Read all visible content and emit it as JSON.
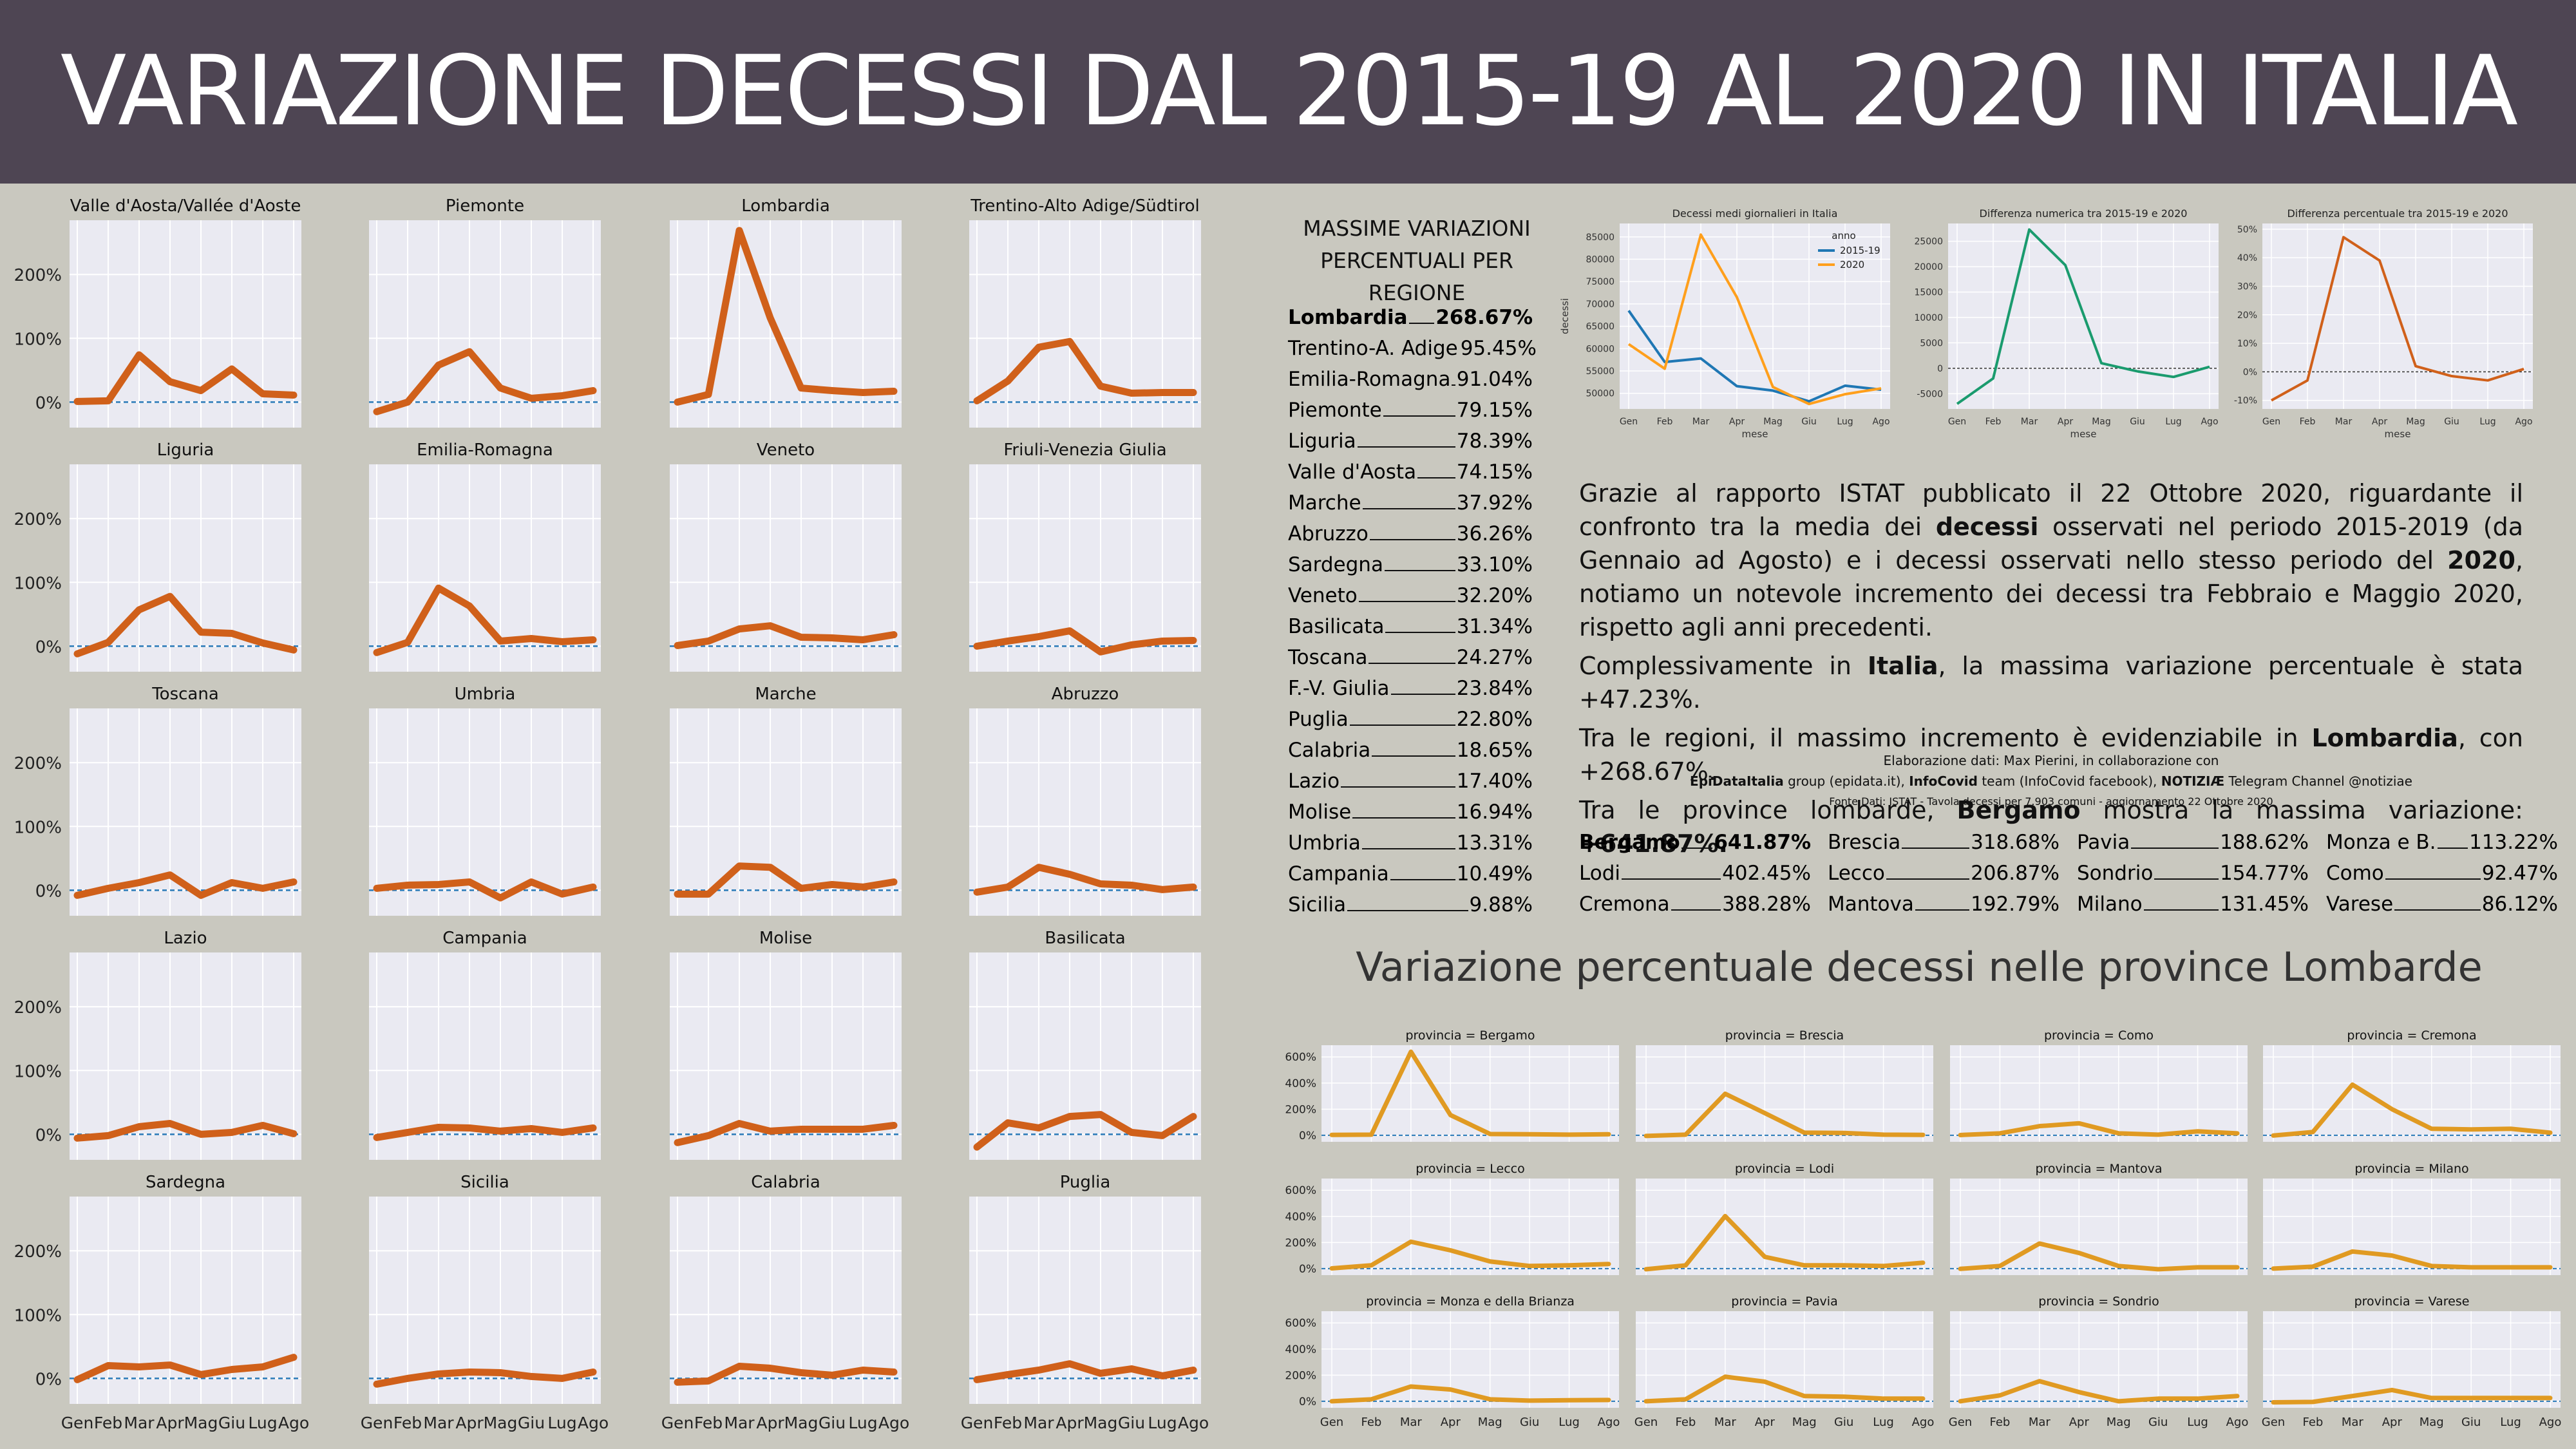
{
  "header": {
    "title": "VARIAZIONE DECESSI DAL 2015-19 AL 2020 IN ITALIA",
    "bg": "#4e4553"
  },
  "colors": {
    "region_line": "#d0601a",
    "province_line": "#e09a22",
    "zero_line": "#2a7ab8",
    "panel_bg": "#eaeaf2",
    "page_bg": "#c9c8bf"
  },
  "months": [
    "Gen",
    "Feb",
    "Mar",
    "Apr",
    "Mag",
    "Giu",
    "Lug",
    "Ago"
  ],
  "region_y_ticks": [
    "0%",
    "100%",
    "200%"
  ],
  "regions": [
    {
      "name": "Valle d'Aosta/Vallée d'Aoste",
      "values": [
        1,
        2,
        74,
        32,
        18,
        52,
        13,
        11
      ]
    },
    {
      "name": "Piemonte",
      "values": [
        -15,
        0,
        58,
        79,
        22,
        6,
        10,
        18
      ]
    },
    {
      "name": "Lombardia",
      "values": [
        0,
        12,
        269,
        132,
        22,
        18,
        15,
        17
      ]
    },
    {
      "name": "Trentino-Alto Adige/Südtirol",
      "values": [
        2,
        33,
        86,
        95,
        25,
        14,
        15,
        15
      ]
    },
    {
      "name": "Liguria",
      "values": [
        -12,
        6,
        57,
        78,
        22,
        20,
        5,
        -6
      ]
    },
    {
      "name": "Emilia-Romagna",
      "values": [
        -10,
        6,
        91,
        63,
        8,
        12,
        7,
        10
      ]
    },
    {
      "name": "Veneto",
      "values": [
        1,
        8,
        27,
        32,
        14,
        13,
        10,
        18
      ]
    },
    {
      "name": "Friuli-Venezia Giulia",
      "values": [
        0,
        8,
        15,
        24,
        -9,
        2,
        8,
        9
      ]
    },
    {
      "name": "Toscana",
      "values": [
        -8,
        3,
        12,
        24,
        -8,
        12,
        3,
        13
      ]
    },
    {
      "name": "Umbria",
      "values": [
        3,
        8,
        9,
        13,
        -12,
        13,
        -6,
        5
      ]
    },
    {
      "name": "Marche",
      "values": [
        -6,
        -6,
        38,
        36,
        3,
        9,
        5,
        13
      ]
    },
    {
      "name": "Abruzzo",
      "values": [
        -3,
        5,
        36,
        25,
        10,
        8,
        1,
        5
      ]
    },
    {
      "name": "Lazio",
      "values": [
        -6,
        -2,
        12,
        17,
        0,
        3,
        14,
        1
      ]
    },
    {
      "name": "Campania",
      "values": [
        -5,
        3,
        11,
        10,
        5,
        9,
        3,
        10
      ]
    },
    {
      "name": "Molise",
      "values": [
        -13,
        -2,
        17,
        5,
        8,
        8,
        8,
        14
      ]
    },
    {
      "name": "Basilicata",
      "values": [
        -20,
        18,
        10,
        28,
        31,
        3,
        -2,
        28
      ]
    },
    {
      "name": "Sardegna",
      "values": [
        -2,
        20,
        18,
        21,
        6,
        14,
        18,
        33
      ]
    },
    {
      "name": "Sicilia",
      "values": [
        -9,
        0,
        7,
        10,
        9,
        3,
        0,
        10
      ]
    },
    {
      "name": "Calabria",
      "values": [
        -6,
        -4,
        19,
        16,
        9,
        5,
        13,
        10
      ]
    },
    {
      "name": "Puglia",
      "values": [
        -2,
        6,
        13,
        23,
        8,
        15,
        4,
        13
      ]
    }
  ],
  "max_variations": {
    "heading": [
      "MASSIME VARIAZIONI",
      "PERCENTUALI PER REGIONE"
    ],
    "items": [
      {
        "name": "Lombardia",
        "value": "268.67%"
      },
      {
        "name": "Trentino-A. Adige",
        "value": "95.45%"
      },
      {
        "name": "Emilia-Romagna",
        "value": "91.04%"
      },
      {
        "name": "Piemonte",
        "value": "79.15%"
      },
      {
        "name": "Liguria",
        "value": "78.39%"
      },
      {
        "name": "Valle d'Aosta",
        "value": "74.15%"
      },
      {
        "name": "Marche",
        "value": "37.92%"
      },
      {
        "name": "Abruzzo",
        "value": "36.26%"
      },
      {
        "name": "Sardegna",
        "value": "33.10%"
      },
      {
        "name": "Veneto",
        "value": "32.20%"
      },
      {
        "name": "Basilicata",
        "value": "31.34%"
      },
      {
        "name": "Toscana",
        "value": "24.27%"
      },
      {
        "name": "F.-V. Giulia",
        "value": "23.84%"
      },
      {
        "name": "Puglia",
        "value": "22.80%"
      },
      {
        "name": "Calabria",
        "value": "18.65%"
      },
      {
        "name": "Lazio",
        "value": "17.40%"
      },
      {
        "name": "Molise",
        "value": "16.94%"
      },
      {
        "name": "Umbria",
        "value": "13.31%"
      },
      {
        "name": "Campania",
        "value": "10.49%"
      },
      {
        "name": "Sicilia",
        "value": "9.88%"
      }
    ]
  },
  "chart_data": [
    {
      "type": "line",
      "title": "Decessi medi giornalieri in Italia",
      "xlabel": "mese",
      "ylabel": "decessi",
      "categories": [
        "Gen",
        "Feb",
        "Mar",
        "Apr",
        "Mag",
        "Giu",
        "Lug",
        "Ago"
      ],
      "yticks": [
        "50000",
        "55000",
        "60000",
        "65000",
        "70000",
        "75000",
        "80000",
        "85000"
      ],
      "ylim": [
        46500,
        88000
      ],
      "legend_title": "anno",
      "legend_position": "top-right",
      "series": [
        {
          "name": "2015-19",
          "color": "#1f77b4",
          "values": [
            68500,
            57000,
            57800,
            51600,
            50600,
            48200,
            51700,
            50800
          ]
        },
        {
          "name": "2020",
          "color": "#ff9f1c",
          "values": [
            61000,
            55500,
            85500,
            71500,
            51400,
            47600,
            49800,
            51100
          ]
        }
      ]
    },
    {
      "type": "line",
      "title": "Differenza numerica tra 2015-19 e 2020",
      "xlabel": "mese",
      "categories": [
        "Gen",
        "Feb",
        "Mar",
        "Apr",
        "Mag",
        "Giu",
        "Lug",
        "Ago"
      ],
      "yticks": [
        "-5000",
        "0",
        "5000",
        "10000",
        "15000",
        "20000",
        "25000"
      ],
      "ylim": [
        -8000,
        28500
      ],
      "series": [
        {
          "name": "",
          "color": "#1a9b6e",
          "values": [
            -7000,
            -2000,
            27300,
            20300,
            1000,
            -600,
            -1700,
            300
          ]
        }
      ]
    },
    {
      "type": "line",
      "title": "Differenza percentuale tra 2015-19 e 2020",
      "xlabel": "mese",
      "categories": [
        "Gen",
        "Feb",
        "Mar",
        "Apr",
        "Mag",
        "Giu",
        "Lug",
        "Ago"
      ],
      "yticks": [
        "-10%",
        "0%",
        "10%",
        "20%",
        "30%",
        "40%",
        "50%"
      ],
      "ylim": [
        -13,
        52
      ],
      "series": [
        {
          "name": "",
          "color": "#d0601a",
          "values": [
            -10,
            -3,
            47.2,
            39,
            2,
            -1.5,
            -3,
            1
          ]
        }
      ]
    }
  ],
  "text": {
    "p1a": "Grazie al rapporto ISTAT pubblicato il 22 Ottobre 2020, riguardante il confronto tra la media dei ",
    "p1b": "decessi",
    "p1c": " osservati nel periodo 2015-2019 (da Gennaio ad Agosto) e i decessi osservati nello stesso periodo del ",
    "p1d": "2020",
    "p1e": ", notiamo un notevole incremento dei decessi tra Febbraio e Maggio 2020, rispetto agli anni precedenti.",
    "p2a": "Complessivamente in ",
    "p2b": "Italia",
    "p2c": ", la massima variazione percentuale è stata +47.23%.",
    "p3a": "Tra le regioni, il massimo incremento è evidenziabile in ",
    "p3b": "Lombardia",
    "p3c": ", con +268.67%.",
    "p4a": "Tra le province lombarde, ",
    "p4b": "Bergamo",
    "p4c": " mostra la massima variazione: ",
    "p4d": "+641.87%."
  },
  "credits": {
    "line1": "Elaborazione dati: Max Pierini, in collaborazione con",
    "l2a": "EpiDataItalia",
    "l2b": " group (epidata.it), ",
    "l2c": "InfoCovid",
    "l2d": " team (InfoCovid facebook), ",
    "l2e": "NOTIZIÆ",
    "l2f": " Telegram Channel @notiziae",
    "line3": "Fonte Dati: ISTAT - Tavola decessi per 7.903 comuni - aggiornamento 22 Ottobre 2020"
  },
  "province_max": [
    {
      "name": "Bergamo",
      "value": "641.87%",
      "bold": true
    },
    {
      "name": "Brescia",
      "value": "318.68%"
    },
    {
      "name": "Pavia",
      "value": "188.62%"
    },
    {
      "name": "Monza e B.",
      "value": "113.22%"
    },
    {
      "name": "Lodi",
      "value": "402.45%"
    },
    {
      "name": "Lecco",
      "value": "206.87%"
    },
    {
      "name": "Sondrio",
      "value": "154.77%"
    },
    {
      "name": "Como",
      "value": "92.47%"
    },
    {
      "name": "Cremona",
      "value": "388.28%"
    },
    {
      "name": "Mantova",
      "value": "192.79%"
    },
    {
      "name": "Milano",
      "value": "131.45%"
    },
    {
      "name": "Varese",
      "value": "86.12%"
    }
  ],
  "province_title": "Variazione percentuale decessi nelle province Lombarde",
  "province_y_ticks": [
    "0%",
    "200%",
    "400%",
    "600%"
  ],
  "provinces": [
    {
      "name": "provincia = Bergamo",
      "values": [
        3,
        5,
        640,
        155,
        10,
        8,
        5,
        8
      ]
    },
    {
      "name": "provincia = Brescia",
      "values": [
        -5,
        5,
        318,
        170,
        20,
        18,
        5,
        3
      ]
    },
    {
      "name": "provincia = Como",
      "values": [
        2,
        15,
        70,
        92,
        15,
        5,
        30,
        15
      ]
    },
    {
      "name": "provincia = Cremona",
      "values": [
        -2,
        25,
        388,
        200,
        50,
        45,
        50,
        20
      ]
    },
    {
      "name": "provincia = Lecco",
      "values": [
        2,
        25,
        206,
        140,
        55,
        20,
        25,
        35
      ]
    },
    {
      "name": "provincia = Lodi",
      "values": [
        -5,
        25,
        402,
        90,
        25,
        25,
        20,
        45
      ]
    },
    {
      "name": "provincia = Mantova",
      "values": [
        -2,
        20,
        192,
        120,
        20,
        -5,
        10,
        10
      ]
    },
    {
      "name": "provincia = Milano",
      "values": [
        0,
        15,
        131,
        100,
        20,
        10,
        10,
        10
      ]
    },
    {
      "name": "provincia = Monza e della Brianza",
      "values": [
        0,
        15,
        113,
        90,
        15,
        5,
        8,
        10
      ]
    },
    {
      "name": "provincia = Pavia",
      "values": [
        0,
        15,
        188,
        150,
        40,
        35,
        20,
        20
      ]
    },
    {
      "name": "provincia = Sondrio",
      "values": [
        0,
        45,
        154,
        70,
        0,
        20,
        20,
        40
      ]
    },
    {
      "name": "provincia = Varese",
      "values": [
        -8,
        -5,
        40,
        86,
        25,
        25,
        25,
        25
      ]
    }
  ]
}
